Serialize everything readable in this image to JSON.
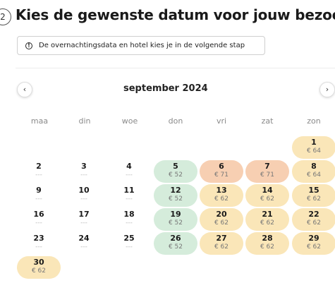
{
  "header": {
    "step": "2",
    "title": "Kies de gewenste datum voor jouw bezoek",
    "info": "De overnachtingsdata en hotel kies je in de volgende stap"
  },
  "calendar": {
    "month": "september 2024",
    "prev_icon": "chevron-left-icon",
    "next_icon": "chevron-right-icon",
    "weekdays": [
      "maa",
      "din",
      "woe",
      "don",
      "vri",
      "zat",
      "zon"
    ],
    "colors": {
      "green": "#d5ecdb",
      "yellow": "#fae6b8",
      "orange": "#f7cfb2"
    },
    "days": [
      {
        "day": "1",
        "price": "€ 64",
        "color": "yellow"
      },
      {
        "day": "2",
        "price": "---",
        "color": "none"
      },
      {
        "day": "3",
        "price": "---",
        "color": "none"
      },
      {
        "day": "4",
        "price": "---",
        "color": "none"
      },
      {
        "day": "5",
        "price": "€ 52",
        "color": "green"
      },
      {
        "day": "6",
        "price": "€ 71",
        "color": "orange"
      },
      {
        "day": "7",
        "price": "€ 71",
        "color": "orange"
      },
      {
        "day": "8",
        "price": "€ 64",
        "color": "yellow"
      },
      {
        "day": "9",
        "price": "---",
        "color": "none"
      },
      {
        "day": "10",
        "price": "---",
        "color": "none"
      },
      {
        "day": "11",
        "price": "---",
        "color": "none"
      },
      {
        "day": "12",
        "price": "€ 52",
        "color": "green"
      },
      {
        "day": "13",
        "price": "€ 62",
        "color": "yellow"
      },
      {
        "day": "14",
        "price": "€ 62",
        "color": "yellow"
      },
      {
        "day": "15",
        "price": "€ 62",
        "color": "yellow"
      },
      {
        "day": "16",
        "price": "---",
        "color": "none"
      },
      {
        "day": "17",
        "price": "---",
        "color": "none"
      },
      {
        "day": "18",
        "price": "---",
        "color": "none"
      },
      {
        "day": "19",
        "price": "€ 52",
        "color": "green"
      },
      {
        "day": "20",
        "price": "€ 62",
        "color": "yellow"
      },
      {
        "day": "21",
        "price": "€ 62",
        "color": "yellow"
      },
      {
        "day": "22",
        "price": "€ 62",
        "color": "yellow"
      },
      {
        "day": "23",
        "price": "---",
        "color": "none"
      },
      {
        "day": "24",
        "price": "---",
        "color": "none"
      },
      {
        "day": "25",
        "price": "---",
        "color": "none"
      },
      {
        "day": "26",
        "price": "€ 52",
        "color": "green"
      },
      {
        "day": "27",
        "price": "€ 62",
        "color": "yellow"
      },
      {
        "day": "28",
        "price": "€ 62",
        "color": "yellow"
      },
      {
        "day": "29",
        "price": "€ 62",
        "color": "yellow"
      },
      {
        "day": "30",
        "price": "€ 62",
        "color": "yellow"
      }
    ]
  }
}
